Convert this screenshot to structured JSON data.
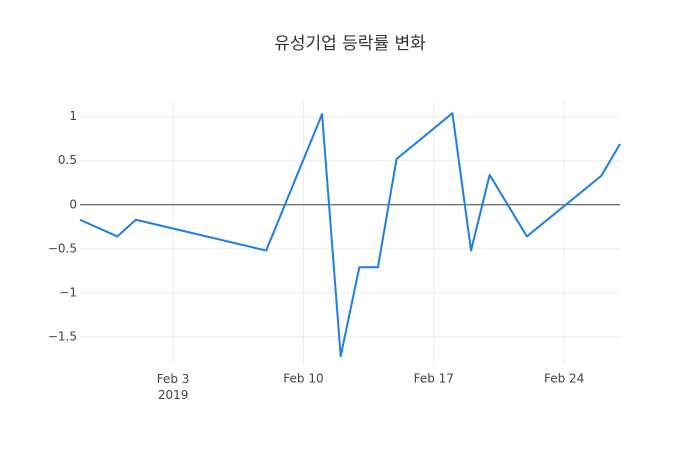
{
  "chart_data": {
    "type": "line",
    "title": "유성기업 등락률 변화",
    "x": [
      "2019-01-29",
      "2019-01-31",
      "2019-02-01",
      "2019-02-08",
      "2019-02-11",
      "2019-02-12",
      "2019-02-13",
      "2019-02-14",
      "2019-02-15",
      "2019-02-18",
      "2019-02-19",
      "2019-02-20",
      "2019-02-22",
      "2019-02-26",
      "2019-02-27"
    ],
    "series": [
      {
        "color": "#1f7fe0",
        "values": [
          -0.17,
          -0.36,
          -0.17,
          -0.52,
          1.03,
          -1.72,
          -0.71,
          -0.71,
          0.52,
          1.04,
          -0.52,
          0.34,
          -0.36,
          0.33,
          0.69
        ]
      }
    ],
    "xlim": [
      "2019-01-29",
      "2019-02-27"
    ],
    "xticks": [
      {
        "value": "2019-02-03",
        "label": "Feb 3\n2019"
      },
      {
        "value": "2019-02-10",
        "label": "Feb 10"
      },
      {
        "value": "2019-02-17",
        "label": "Feb 17"
      },
      {
        "value": "2019-02-24",
        "label": "Feb 24"
      }
    ],
    "ylim": [
      -1.82,
      1.19
    ],
    "yticks": [
      {
        "value": 1,
        "label": "1"
      },
      0.5,
      0,
      {
        "value": -0.5,
        "label": "−0.5"
      },
      {
        "value": -1,
        "label": "−1"
      },
      {
        "value": -1.5,
        "label": "−1.5"
      }
    ],
    "grid": true,
    "zeroline": true
  }
}
